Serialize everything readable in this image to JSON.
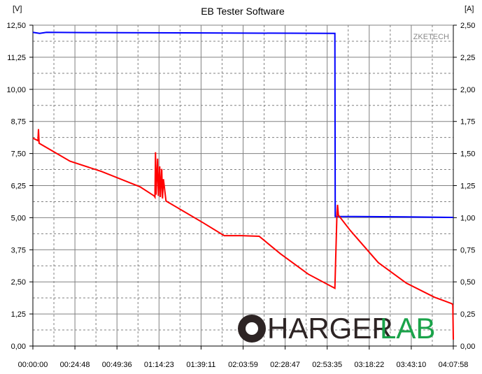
{
  "window": {
    "title": "EB Tester Software"
  },
  "watermark": {
    "brand": "ZKETECH",
    "logo_dark": "HARGER",
    "logo_green": "LAB"
  },
  "chart_data": {
    "type": "line",
    "title": "EB Tester Software",
    "ylabel_left": "[V]",
    "ylabel_right": "[A]",
    "xlim": [
      "00:00:00",
      "04:07:58"
    ],
    "ylim_left": [
      0,
      12.5
    ],
    "ylim_right": [
      0,
      2.5
    ],
    "grid": true,
    "x_ticks": [
      "00:00:00",
      "00:24:48",
      "00:49:36",
      "01:14:23",
      "01:39:11",
      "02:03:59",
      "02:28:47",
      "02:53:35",
      "03:18:22",
      "03:43:10",
      "04:07:58"
    ],
    "y_ticks_left": [
      "0,00",
      "1,25",
      "2,50",
      "3,75",
      "5,00",
      "6,25",
      "7,50",
      "8,75",
      "10,00",
      "11,25",
      "12,50"
    ],
    "y_ticks_right": [
      "0,00",
      "0,25",
      "0,50",
      "0,75",
      "1,00",
      "1,25",
      "1,50",
      "1,75",
      "2,00",
      "2,25",
      "2,50"
    ],
    "series": [
      {
        "axis": "left",
        "unit": "V",
        "color": "#0000ff",
        "points": [
          [
            "00:00:00",
            12.22
          ],
          [
            "00:04:00",
            12.18
          ],
          [
            "00:08:00",
            12.22
          ],
          [
            "00:30:00",
            12.21
          ],
          [
            "01:30:00",
            12.2
          ],
          [
            "02:58:08",
            12.18
          ],
          [
            "02:58:20",
            5.05
          ],
          [
            "03:40:00",
            5.03
          ],
          [
            "04:07:58",
            5.01
          ]
        ]
      },
      {
        "axis": "right",
        "unit": "A",
        "color": "#ff0000",
        "points": [
          [
            "00:00:00",
            1.62
          ],
          [
            "00:03:00",
            1.6
          ],
          [
            "00:03:18",
            1.69
          ],
          [
            "00:03:40",
            1.58
          ],
          [
            "00:21:54",
            1.44
          ],
          [
            "00:40:30",
            1.36
          ],
          [
            "01:03:14",
            1.24
          ],
          [
            "01:11:30",
            1.17
          ],
          [
            "01:12:00",
            1.16
          ],
          [
            "01:12:19",
            1.51
          ],
          [
            "01:12:40",
            1.18
          ],
          [
            "01:13:34",
            1.46
          ],
          [
            "01:14:00",
            1.17
          ],
          [
            "01:14:48",
            1.4
          ],
          [
            "01:15:10",
            1.16
          ],
          [
            "01:16:00",
            1.38
          ],
          [
            "01:16:27",
            1.15
          ],
          [
            "01:17:00",
            1.3
          ],
          [
            "01:18:31",
            1.13
          ],
          [
            "01:40:26",
            0.96
          ],
          [
            "01:52:50",
            0.86
          ],
          [
            "02:03:10",
            0.86
          ],
          [
            "02:13:29",
            0.855
          ],
          [
            "02:25:53",
            0.72
          ],
          [
            "02:42:25",
            0.56
          ],
          [
            "02:58:08",
            0.45
          ],
          [
            "02:59:22",
            1.04
          ],
          [
            "02:59:40",
            1.1
          ],
          [
            "03:00:10",
            1.02
          ],
          [
            "03:07:13",
            0.9
          ],
          [
            "03:23:45",
            0.65
          ],
          [
            "03:40:17",
            0.49
          ],
          [
            "03:56:49",
            0.38
          ],
          [
            "04:07:09",
            0.33
          ],
          [
            "04:07:40",
            0.32
          ],
          [
            "04:07:58",
            0.05
          ]
        ]
      }
    ]
  }
}
